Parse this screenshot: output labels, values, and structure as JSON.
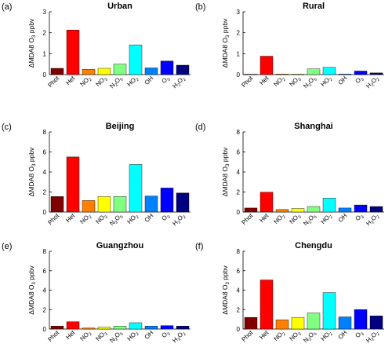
{
  "chart_data": [
    {
      "type": "bar",
      "label": "(a)",
      "title": "Urban",
      "ylabel": "ΔMDA8 O",
      "ylabel_sub": "3",
      "ylabel_unit": " ppbv",
      "ylim": [
        0,
        3
      ],
      "yticks": [
        0,
        1,
        2,
        3
      ],
      "categories": [
        "Phot",
        "Het",
        "NO2",
        "NO3",
        "N2O5",
        "HO2",
        "OH",
        "O3",
        "H2O2"
      ],
      "values": [
        0.3,
        2.13,
        0.25,
        0.3,
        0.5,
        1.42,
        0.32,
        0.65,
        0.45
      ]
    },
    {
      "type": "bar",
      "label": "(b)",
      "title": "Rural",
      "ylabel": "ΔMDA8 O",
      "ylabel_sub": "3",
      "ylabel_unit": " ppbv",
      "ylim": [
        0,
        3
      ],
      "yticks": [
        0,
        1,
        2,
        3
      ],
      "categories": [
        "Phot",
        "Het",
        "NO2",
        "NO3",
        "N2O5",
        "HO2",
        "OH",
        "O3",
        "H2O2"
      ],
      "values": [
        0.02,
        0.88,
        0.03,
        0.02,
        0.27,
        0.35,
        0.03,
        0.17,
        0.08
      ]
    },
    {
      "type": "bar",
      "label": "(c)",
      "title": "Beijing",
      "ylabel": "ΔMDA8 O",
      "ylabel_sub": "3",
      "ylabel_unit": " ppbv",
      "ylim": [
        0,
        8
      ],
      "yticks": [
        0,
        2,
        4,
        6,
        8
      ],
      "categories": [
        "Phot",
        "Het",
        "NO2",
        "NO3",
        "N2O5",
        "HO2",
        "OH",
        "O3",
        "H2O2"
      ],
      "values": [
        1.55,
        5.5,
        1.15,
        1.55,
        1.55,
        4.75,
        1.6,
        2.4,
        1.9
      ]
    },
    {
      "type": "bar",
      "label": "(d)",
      "title": "Shanghai",
      "ylabel": "ΔMDA8 O",
      "ylabel_sub": "3",
      "ylabel_unit": " ppbv",
      "ylim": [
        0,
        8
      ],
      "yticks": [
        0,
        2,
        4,
        6,
        8
      ],
      "categories": [
        "Phot",
        "Het",
        "NO2",
        "NO3",
        "N2O5",
        "HO2",
        "OH",
        "O3",
        "H2O2"
      ],
      "values": [
        0.4,
        1.98,
        0.25,
        0.35,
        0.55,
        1.38,
        0.4,
        0.7,
        0.55
      ]
    },
    {
      "type": "bar",
      "label": "(e)",
      "title": "Guangzhou",
      "ylabel": "ΔMDA8 O",
      "ylabel_sub": "3",
      "ylabel_unit": " ppbv",
      "ylim": [
        0,
        8
      ],
      "yticks": [
        0,
        2,
        4,
        6,
        8
      ],
      "categories": [
        "Phot",
        "Het",
        "NO2",
        "NO3",
        "N2O5",
        "HO2",
        "OH",
        "O3",
        "H2O2"
      ],
      "values": [
        0.3,
        0.75,
        0.1,
        0.2,
        0.3,
        0.65,
        0.3,
        0.35,
        0.3
      ]
    },
    {
      "type": "bar",
      "label": "(f)",
      "title": "Chengdu",
      "ylabel": "ΔMDA8 O",
      "ylabel_sub": "3",
      "ylabel_unit": " ppbv",
      "ylim": [
        0,
        8
      ],
      "yticks": [
        0,
        2,
        4,
        6,
        8
      ],
      "categories": [
        "Phot",
        "Het",
        "NO2",
        "NO3",
        "N2O5",
        "HO2",
        "OH",
        "O3",
        "H2O2"
      ],
      "values": [
        1.2,
        5.05,
        0.95,
        1.2,
        1.65,
        3.75,
        1.25,
        2.0,
        1.35
      ]
    }
  ],
  "bar_colors": [
    "#800000",
    "#ff0000",
    "#ff8000",
    "#ffff00",
    "#80ff80",
    "#00ffff",
    "#0080ff",
    "#0000ff",
    "#000080"
  ],
  "category_labels": [
    {
      "main": "Phot"
    },
    {
      "main": "Het"
    },
    {
      "main": "NO",
      "sub": "2"
    },
    {
      "main": "NO",
      "sub": "3"
    },
    {
      "parts": [
        {
          "t": "N"
        },
        {
          "t": "2",
          "sub": true
        },
        {
          "t": "O"
        },
        {
          "t": "5",
          "sub": true
        }
      ]
    },
    {
      "main": "HO",
      "sub": "2"
    },
    {
      "main": "OH"
    },
    {
      "main": "O",
      "sub": "3"
    },
    {
      "parts": [
        {
          "t": "H"
        },
        {
          "t": "2",
          "sub": true
        },
        {
          "t": "O"
        },
        {
          "t": "2",
          "sub": true
        }
      ]
    }
  ]
}
